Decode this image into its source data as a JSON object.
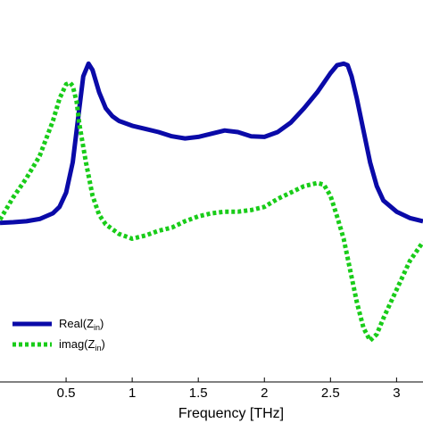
{
  "chart_data": {
    "type": "line",
    "xlabel": "Frequency [THz]",
    "ylabel": "",
    "title": "",
    "xlim": [
      0,
      3.2
    ],
    "ylim": [
      -5,
      7
    ],
    "xticks": [
      0.5,
      1,
      1.5,
      2,
      2.5,
      3
    ],
    "xtick_labels": [
      "0.5",
      "1",
      "1.5",
      "2",
      "2.5",
      "3"
    ],
    "grid": false,
    "legend_position": "bottom-left",
    "legend": {
      "real": {
        "base": "Real(Z",
        "sub": "in",
        "close": ")"
      },
      "imag": {
        "base": "imag(Z",
        "sub": "in",
        "close": ")"
      }
    },
    "series": [
      {
        "key": "real",
        "color": "#0a0aa8",
        "style": "solid",
        "x": [
          0,
          0.1,
          0.2,
          0.3,
          0.4,
          0.45,
          0.5,
          0.55,
          0.6,
          0.63,
          0.67,
          0.7,
          0.75,
          0.8,
          0.85,
          0.9,
          1.0,
          1.1,
          1.2,
          1.3,
          1.4,
          1.5,
          1.6,
          1.7,
          1.8,
          1.9,
          2.0,
          2.1,
          2.2,
          2.3,
          2.4,
          2.5,
          2.55,
          2.6,
          2.63,
          2.66,
          2.7,
          2.75,
          2.8,
          2.85,
          2.9,
          3.0,
          3.1,
          3.2
        ],
        "y": [
          0,
          0.02,
          0.05,
          0.12,
          0.3,
          0.5,
          0.95,
          1.9,
          3.6,
          4.6,
          5.0,
          4.8,
          4.1,
          3.6,
          3.35,
          3.2,
          3.05,
          2.95,
          2.85,
          2.72,
          2.65,
          2.7,
          2.8,
          2.9,
          2.85,
          2.72,
          2.7,
          2.85,
          3.15,
          3.6,
          4.1,
          4.7,
          4.95,
          5.0,
          4.95,
          4.6,
          3.9,
          2.9,
          1.9,
          1.15,
          0.7,
          0.35,
          0.15,
          0.05
        ]
      },
      {
        "key": "imag",
        "color": "#19cc19",
        "style": "dashed",
        "x": [
          0,
          0.1,
          0.2,
          0.3,
          0.4,
          0.45,
          0.5,
          0.53,
          0.55,
          0.58,
          0.6,
          0.65,
          0.7,
          0.75,
          0.8,
          0.9,
          1.0,
          1.1,
          1.2,
          1.3,
          1.4,
          1.5,
          1.6,
          1.7,
          1.8,
          1.9,
          2.0,
          2.1,
          2.2,
          2.3,
          2.4,
          2.45,
          2.5,
          2.55,
          2.6,
          2.65,
          2.7,
          2.75,
          2.8,
          2.85,
          2.9,
          3.0,
          3.1,
          3.2
        ],
        "y": [
          0.1,
          0.8,
          1.4,
          2.1,
          3.2,
          3.9,
          4.35,
          4.4,
          4.3,
          3.8,
          3.1,
          1.9,
          0.85,
          0.25,
          -0.05,
          -0.35,
          -0.5,
          -0.4,
          -0.25,
          -0.15,
          0.05,
          0.2,
          0.3,
          0.35,
          0.35,
          0.4,
          0.5,
          0.75,
          0.95,
          1.15,
          1.25,
          1.2,
          0.85,
          0.2,
          -0.5,
          -1.5,
          -2.5,
          -3.3,
          -3.7,
          -3.5,
          -3.0,
          -2.1,
          -1.2,
          -0.6
        ]
      }
    ]
  }
}
